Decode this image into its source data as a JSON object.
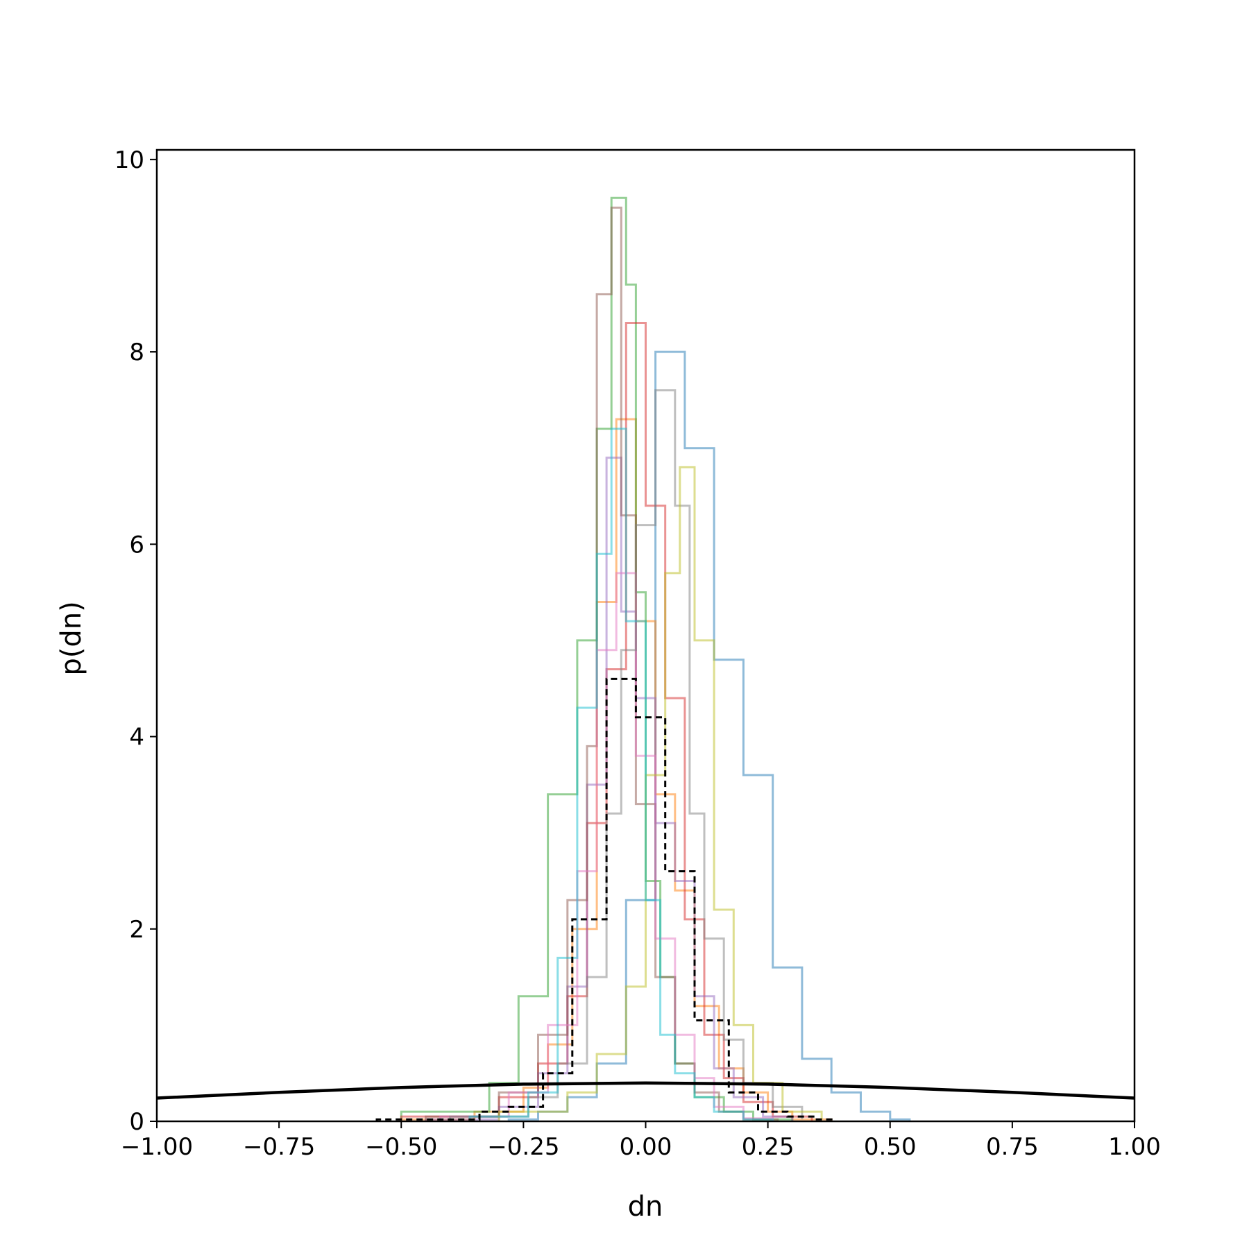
{
  "chart_data": {
    "type": "histogram",
    "xlabel": "dn",
    "ylabel": "p(dn)",
    "xlim": [
      -1.0,
      1.0
    ],
    "ylim": [
      0,
      10.1
    ],
    "x_ticks": [
      -1.0,
      -0.75,
      -0.5,
      -0.25,
      0.0,
      0.25,
      0.5,
      0.75,
      1.0
    ],
    "x_tick_labels": [
      "−1.00",
      "−0.75",
      "−0.50",
      "−0.25",
      "0.00",
      "0.25",
      "0.50",
      "0.75",
      "1.00"
    ],
    "y_ticks": [
      0,
      2,
      4,
      6,
      8,
      10
    ],
    "y_tick_labels": [
      "0",
      "2",
      "4",
      "6",
      "8",
      "10"
    ],
    "grid": false,
    "legend": "none",
    "series": [
      {
        "color": "#1f77b4",
        "alpha": 0.5,
        "edges": [
          -0.28,
          -0.22,
          -0.16,
          -0.1,
          -0.04,
          0.02,
          0.08,
          0.14,
          0.2,
          0.26,
          0.32,
          0.38,
          0.44,
          0.5,
          0.54
        ],
        "values": [
          0.02,
          0.1,
          0.25,
          0.6,
          2.3,
          8.0,
          7.0,
          4.8,
          3.6,
          1.6,
          0.65,
          0.3,
          0.1,
          0.02
        ]
      },
      {
        "color": "#ff7f0e",
        "alpha": 0.5,
        "edges": [
          -0.5,
          -0.35,
          -0.25,
          -0.2,
          -0.15,
          -0.1,
          -0.06,
          -0.02,
          0.02,
          0.06,
          0.1,
          0.15,
          0.2,
          0.25,
          0.3,
          0.38
        ],
        "values": [
          0.02,
          0.1,
          0.35,
          0.8,
          2.0,
          5.4,
          7.3,
          5.2,
          3.4,
          2.4,
          1.2,
          0.55,
          0.3,
          0.1,
          0.02
        ]
      },
      {
        "color": "#2ca02c",
        "alpha": 0.5,
        "edges": [
          -0.5,
          -0.32,
          -0.26,
          -0.2,
          -0.14,
          -0.1,
          -0.07,
          -0.04,
          -0.02,
          0.0,
          0.03,
          0.06,
          0.1,
          0.16,
          0.22,
          0.3
        ],
        "values": [
          0.1,
          0.4,
          1.3,
          3.4,
          5.0,
          7.2,
          9.6,
          8.7,
          5.5,
          2.5,
          1.5,
          0.6,
          0.25,
          0.1,
          0.02
        ]
      },
      {
        "color": "#d62728",
        "alpha": 0.5,
        "edges": [
          -0.5,
          -0.3,
          -0.22,
          -0.16,
          -0.12,
          -0.08,
          -0.04,
          0.0,
          0.04,
          0.08,
          0.12,
          0.16,
          0.2,
          0.26,
          0.34
        ],
        "values": [
          0.05,
          0.25,
          0.6,
          1.3,
          3.1,
          4.7,
          8.3,
          6.4,
          4.4,
          2.1,
          0.9,
          0.45,
          0.2,
          0.05
        ]
      },
      {
        "color": "#9467bd",
        "alpha": 0.5,
        "edges": [
          -0.45,
          -0.3,
          -0.22,
          -0.16,
          -0.12,
          -0.08,
          -0.05,
          -0.02,
          0.02,
          0.06,
          0.1,
          0.14,
          0.18,
          0.24,
          0.3
        ],
        "values": [
          0.02,
          0.15,
          0.5,
          1.4,
          3.5,
          6.9,
          5.3,
          4.4,
          3.1,
          2.5,
          1.3,
          0.55,
          0.25,
          0.05
        ]
      },
      {
        "color": "#8c564b",
        "alpha": 0.5,
        "edges": [
          -0.45,
          -0.3,
          -0.22,
          -0.16,
          -0.12,
          -0.1,
          -0.07,
          -0.05,
          -0.02,
          0.02,
          0.06,
          0.1,
          0.15,
          0.2,
          0.27
        ],
        "values": [
          0.05,
          0.3,
          0.9,
          2.3,
          3.9,
          8.6,
          9.5,
          6.3,
          3.3,
          1.5,
          0.6,
          0.3,
          0.1,
          0.02
        ]
      },
      {
        "color": "#e377c2",
        "alpha": 0.5,
        "edges": [
          -0.42,
          -0.28,
          -0.2,
          -0.14,
          -0.1,
          -0.06,
          -0.02,
          0.02,
          0.06,
          0.1,
          0.14,
          0.2,
          0.26
        ],
        "values": [
          0.05,
          0.3,
          1.0,
          2.6,
          4.9,
          5.7,
          3.8,
          1.9,
          0.9,
          0.45,
          0.15,
          0.03
        ]
      },
      {
        "color": "#7f7f7f",
        "alpha": 0.5,
        "edges": [
          -0.4,
          -0.24,
          -0.18,
          -0.12,
          -0.08,
          -0.05,
          -0.02,
          0.02,
          0.06,
          0.09,
          0.12,
          0.16,
          0.2,
          0.26,
          0.32
        ],
        "values": [
          0.05,
          0.25,
          0.6,
          1.5,
          3.2,
          4.9,
          6.2,
          7.6,
          6.4,
          3.2,
          1.9,
          0.85,
          0.4,
          0.15,
          0.02
        ]
      },
      {
        "color": "#bcbd22",
        "alpha": 0.5,
        "edges": [
          -0.3,
          -0.16,
          -0.1,
          -0.04,
          0.0,
          0.04,
          0.07,
          0.1,
          0.14,
          0.18,
          0.22,
          0.28,
          0.36
        ],
        "values": [
          0.1,
          0.3,
          0.7,
          1.4,
          3.6,
          5.7,
          6.8,
          5.0,
          2.2,
          1.0,
          0.4,
          0.1,
          0.02
        ]
      },
      {
        "color": "#17becf",
        "alpha": 0.5,
        "edges": [
          -0.36,
          -0.24,
          -0.18,
          -0.14,
          -0.1,
          -0.07,
          -0.04,
          0.0,
          0.03,
          0.06,
          0.1,
          0.14,
          0.2,
          0.26
        ],
        "values": [
          0.05,
          0.3,
          1.7,
          4.3,
          5.9,
          7.2,
          5.2,
          2.3,
          0.9,
          0.5,
          0.25,
          0.1,
          0.02
        ]
      }
    ],
    "dashed_reference": {
      "color": "#000000",
      "edges": [
        -0.55,
        -0.34,
        -0.28,
        -0.21,
        -0.18,
        -0.15,
        -0.08,
        -0.02,
        0.04,
        0.1,
        0.17,
        0.23,
        0.29,
        0.35,
        0.38
      ],
      "values": [
        0.02,
        0.1,
        0.15,
        0.5,
        0.5,
        2.1,
        4.6,
        4.2,
        2.6,
        1.05,
        0.3,
        0.1,
        0.05,
        0.02
      ]
    },
    "reference_curve": {
      "color": "#000000",
      "x": [
        -1.0,
        -0.75,
        -0.5,
        -0.25,
        0.0,
        0.25,
        0.5,
        0.75,
        1.0
      ],
      "y": [
        0.242,
        0.301,
        0.352,
        0.387,
        0.399,
        0.387,
        0.352,
        0.301,
        0.242
      ]
    }
  }
}
